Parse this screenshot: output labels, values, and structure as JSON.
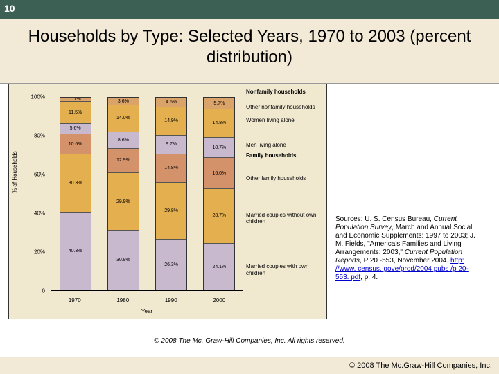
{
  "slide": {
    "number": "10"
  },
  "title": "Households by Type: Selected Years, 1970 to 2003 (percent distribution)",
  "chart": {
    "type": "stacked-bar",
    "background": "#f0e8cf",
    "ylabel": "% of Households",
    "xlabel": "Year",
    "ylim": [
      0,
      100
    ],
    "yticks": [
      "0",
      "20%",
      "40%",
      "60%",
      "80%",
      "100%"
    ],
    "categories": [
      "1970",
      "1980",
      "1990",
      "2000"
    ],
    "segments_top_to_bottom": [
      {
        "key": "other_nonfamily",
        "label": "Other nonfamily households",
        "color": "#d9a36a"
      },
      {
        "key": "women_alone",
        "label": "Women living alone",
        "color": "#e3af4f"
      },
      {
        "key": "men_alone",
        "label": "Men living alone",
        "color": "#c9b9cf"
      },
      {
        "key": "other_family",
        "label": "Other family households",
        "color": "#d4926a"
      },
      {
        "key": "married_no_children",
        "label": "Married couples without own children",
        "color": "#e3af4f"
      },
      {
        "key": "married_with_children",
        "label": "Married couples with own children",
        "color": "#c9b9cf"
      }
    ],
    "group_headers": {
      "nonfamily": "Nonfamily households",
      "family": "Family households"
    },
    "data": {
      "1970": {
        "other_nonfamily": 1.7,
        "women_alone": 11.5,
        "men_alone": 5.6,
        "other_family": 10.6,
        "married_no_children": 30.3,
        "married_with_children": 40.3
      },
      "1980": {
        "other_nonfamily": 3.6,
        "women_alone": 14.0,
        "men_alone": 8.6,
        "other_family": 12.9,
        "married_no_children": 29.9,
        "married_with_children": 30.9
      },
      "1990": {
        "other_nonfamily": 4.6,
        "women_alone": 14.9,
        "men_alone": 9.7,
        "other_family": 14.8,
        "married_no_children": 29.8,
        "married_with_children": 26.3
      },
      "2000": {
        "other_nonfamily": 5.7,
        "women_alone": 14.8,
        "men_alone": 10.7,
        "other_family": 16.0,
        "married_no_children": 28.7,
        "married_with_children": 24.1
      }
    },
    "label_fontsize": 8,
    "value_fontsize": 7
  },
  "sources": {
    "prefix": "Sources: U. S. Census Bureau, ",
    "ital1": "Current Population Survey",
    "mid1": ", March and Annual Social and Economic Supplements: 1997 to 2003; J. M. Fields, \"America's Families and Living Arrangements: 2003,\" ",
    "ital2": "Current Population Reports",
    "mid2": ", P 20 -553, November 2004. ",
    "link": "http: //www. census. gove/prod/2004 pubs /p 20-553. pdf",
    "tail": ", p. 4."
  },
  "copyright": {
    "center": "© 2008 The Mc. Graw-Hill Companies, Inc. All rights reserved.",
    "footer": "© 2008 The Mc.Graw-Hill Companies, Inc."
  }
}
